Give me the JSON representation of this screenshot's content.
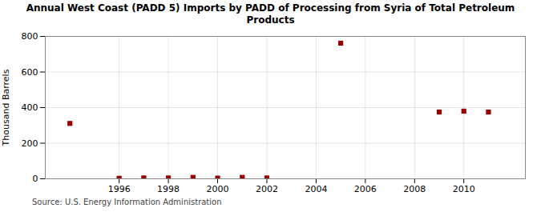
{
  "chart_data": {
    "type": "scatter",
    "title": "Annual West Coast (PADD 5) Imports by PADD of Processing from Syria of Total Petroleum\nProducts",
    "ylabel": "Thousand Barrels",
    "source": "Source: U.S. Energy Information Administration",
    "x": [
      1994,
      1996,
      1997,
      1998,
      1999,
      2000,
      2001,
      2002,
      2005,
      2009,
      2010,
      2011
    ],
    "values": [
      311,
      3,
      5,
      5,
      8,
      4,
      8,
      5,
      762,
      375,
      380,
      375
    ],
    "color": "#990000",
    "marker": "square",
    "xlim": [
      1993.0,
      2012.5
    ],
    "xticks": [
      1996,
      1998,
      2000,
      2002,
      2004,
      2006,
      2008,
      2010
    ],
    "ylim": [
      0,
      800
    ],
    "yticks": [
      0,
      200,
      400,
      600,
      800
    ],
    "grid": true
  }
}
